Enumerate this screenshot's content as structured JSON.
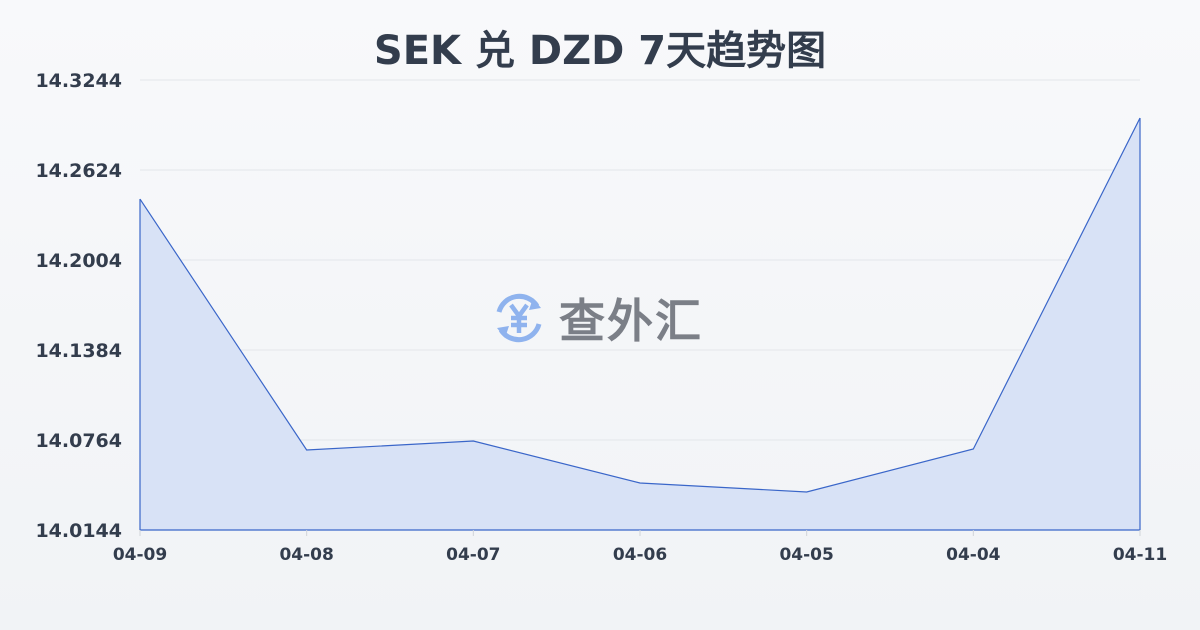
{
  "title": "SEK 兑 DZD 7天趋势图",
  "watermark": {
    "text": "查外汇",
    "icon": "yen-exchange-icon"
  },
  "chart_data": {
    "type": "area",
    "title": "SEK 兑 DZD 7天趋势图",
    "categories": [
      "04-09",
      "04-08",
      "04-07",
      "04-06",
      "04-05",
      "04-04",
      "04-11"
    ],
    "values": [
      14.2424,
      14.0695,
      14.0757,
      14.0468,
      14.0406,
      14.0702,
      14.2982
    ],
    "yticks": [
      "14.3244",
      "14.2624",
      "14.2004",
      "14.1384",
      "14.0764",
      "14.0144"
    ],
    "ylim": [
      14.0144,
      14.3244
    ],
    "grid": true,
    "colors": {
      "line": "#3a66c9",
      "fill": "#d6e0f5"
    }
  }
}
